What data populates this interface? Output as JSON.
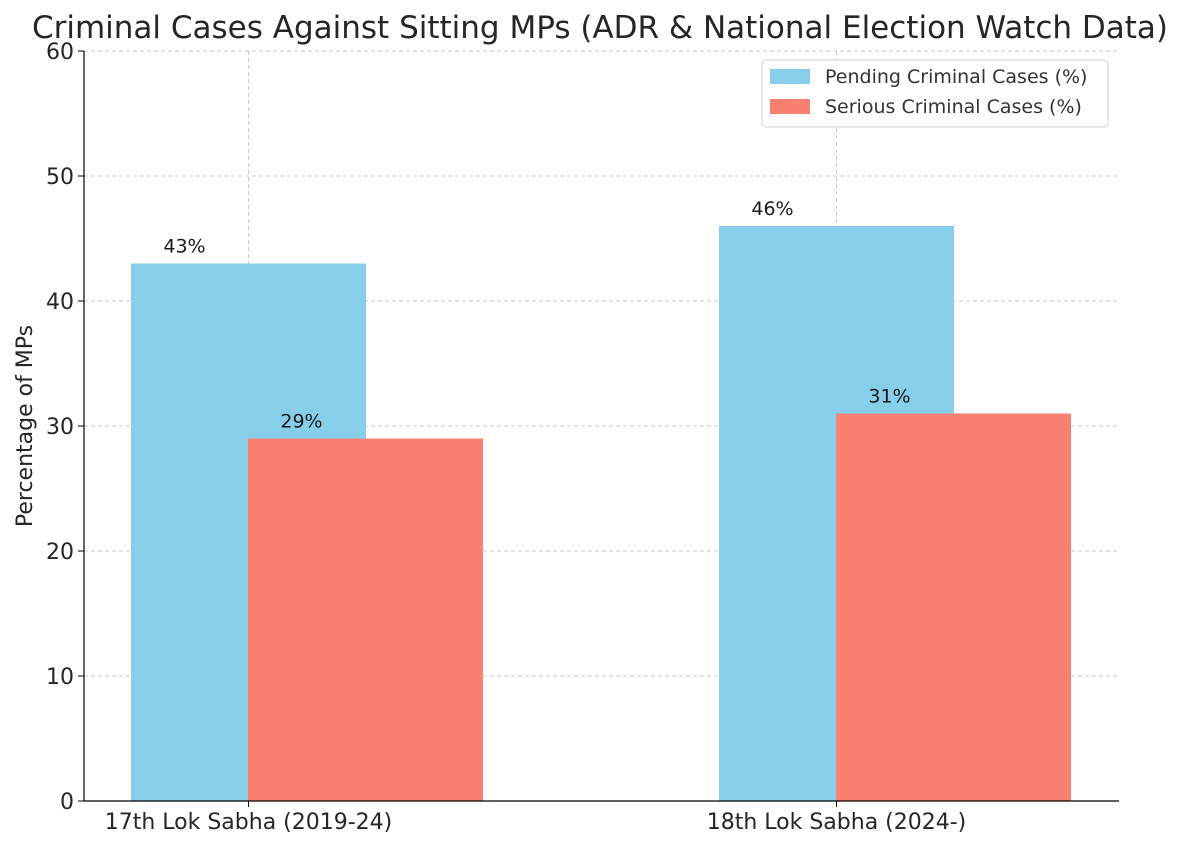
{
  "chart_data": {
    "type": "bar",
    "title": "Criminal Cases Against Sitting MPs (ADR & National Election Watch Data)",
    "xlabel": "",
    "ylabel": "Percentage of MPs",
    "categories": [
      "17th Lok Sabha (2019-24)",
      "18th Lok Sabha (2024-)"
    ],
    "series": [
      {
        "name": "Pending Criminal Cases (%)",
        "values": [
          43,
          46
        ],
        "labels": [
          "43%",
          "46%"
        ],
        "color": "#87CEEB"
      },
      {
        "name": "Serious Criminal Cases (%)",
        "values": [
          29,
          31
        ],
        "labels": [
          "29%",
          "31%"
        ],
        "color": "#FA8072"
      }
    ],
    "ylim": [
      0,
      60
    ],
    "yticks": [
      0,
      10,
      20,
      30,
      40,
      50,
      60
    ],
    "grid": true,
    "legend": "top-right"
  }
}
